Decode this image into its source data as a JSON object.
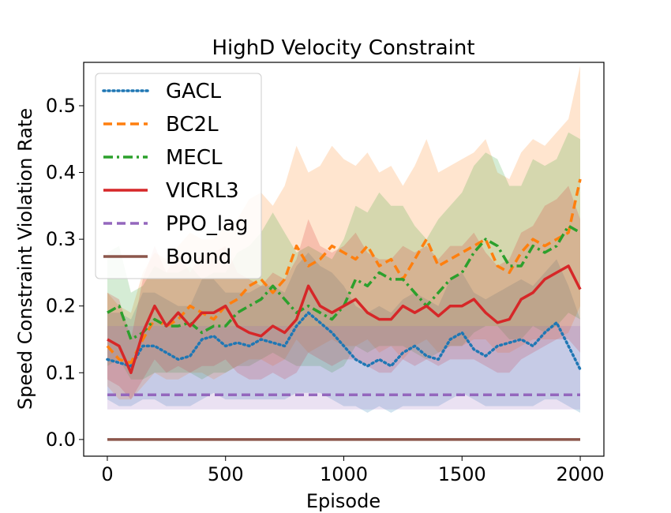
{
  "chart_data": {
    "type": "line",
    "title": "HighD Velocity Constraint",
    "xlabel": "Episode",
    "ylabel": "Speed Constraint Violation Rate",
    "xlim": [
      -100,
      2100
    ],
    "ylim": [
      -0.025,
      0.565
    ],
    "xticks": [
      0,
      500,
      1000,
      1500,
      2000
    ],
    "xtick_labels": [
      "0",
      "500",
      "1000",
      "1500",
      "2000"
    ],
    "yticks": [
      0.0,
      0.1,
      0.2,
      0.3,
      0.4,
      0.5
    ],
    "ytick_labels": [
      "0.0",
      "0.1",
      "0.2",
      "0.3",
      "0.4",
      "0.5"
    ],
    "legend_position": "upper-left",
    "series": [
      {
        "name": "GACL",
        "color": "#1f77b4",
        "style": "dotted",
        "x": [
          0,
          50,
          100,
          150,
          200,
          250,
          300,
          350,
          400,
          450,
          500,
          550,
          600,
          650,
          700,
          750,
          800,
          850,
          900,
          950,
          1000,
          1050,
          1100,
          1150,
          1200,
          1250,
          1300,
          1350,
          1400,
          1450,
          1500,
          1550,
          1600,
          1650,
          1700,
          1750,
          1800,
          1850,
          1900,
          1950,
          2000
        ],
        "y": [
          0.12,
          0.115,
          0.11,
          0.14,
          0.14,
          0.13,
          0.12,
          0.125,
          0.15,
          0.155,
          0.14,
          0.145,
          0.14,
          0.15,
          0.145,
          0.14,
          0.17,
          0.19,
          0.175,
          0.16,
          0.14,
          0.12,
          0.11,
          0.12,
          0.11,
          0.13,
          0.14,
          0.125,
          0.12,
          0.15,
          0.16,
          0.135,
          0.125,
          0.14,
          0.145,
          0.15,
          0.14,
          0.16,
          0.175,
          0.14,
          0.105
        ],
        "band_lower": [
          0.06,
          0.05,
          0.05,
          0.06,
          0.06,
          0.05,
          0.05,
          0.05,
          0.06,
          0.07,
          0.06,
          0.06,
          0.06,
          0.06,
          0.06,
          0.06,
          0.07,
          0.07,
          0.07,
          0.06,
          0.05,
          0.05,
          0.04,
          0.05,
          0.04,
          0.05,
          0.05,
          0.05,
          0.05,
          0.06,
          0.07,
          0.06,
          0.05,
          0.05,
          0.05,
          0.05,
          0.05,
          0.06,
          0.06,
          0.05,
          0.04
        ],
        "band_upper": [
          0.19,
          0.19,
          0.18,
          0.22,
          0.22,
          0.21,
          0.2,
          0.2,
          0.24,
          0.24,
          0.22,
          0.22,
          0.22,
          0.23,
          0.23,
          0.22,
          0.26,
          0.28,
          0.26,
          0.25,
          0.23,
          0.2,
          0.19,
          0.2,
          0.19,
          0.21,
          0.22,
          0.21,
          0.2,
          0.24,
          0.25,
          0.22,
          0.21,
          0.22,
          0.23,
          0.24,
          0.23,
          0.25,
          0.27,
          0.23,
          0.18
        ]
      },
      {
        "name": "BC2L",
        "color": "#ff7f0e",
        "style": "dashed",
        "x": [
          0,
          50,
          100,
          150,
          200,
          250,
          300,
          350,
          400,
          450,
          500,
          550,
          600,
          650,
          700,
          750,
          800,
          850,
          900,
          950,
          1000,
          1050,
          1100,
          1150,
          1200,
          1250,
          1300,
          1350,
          1400,
          1450,
          1500,
          1550,
          1600,
          1650,
          1700,
          1750,
          1800,
          1850,
          1900,
          1950,
          2000
        ],
        "y": [
          0.14,
          0.12,
          0.115,
          0.15,
          0.18,
          0.17,
          0.18,
          0.2,
          0.19,
          0.18,
          0.2,
          0.21,
          0.23,
          0.24,
          0.22,
          0.24,
          0.29,
          0.26,
          0.27,
          0.29,
          0.28,
          0.27,
          0.29,
          0.26,
          0.27,
          0.24,
          0.27,
          0.3,
          0.26,
          0.27,
          0.28,
          0.29,
          0.3,
          0.26,
          0.25,
          0.28,
          0.3,
          0.29,
          0.3,
          0.31,
          0.39
        ],
        "band_lower": [
          0.08,
          0.06,
          0.06,
          0.08,
          0.1,
          0.09,
          0.09,
          0.1,
          0.1,
          0.09,
          0.1,
          0.11,
          0.12,
          0.12,
          0.11,
          0.12,
          0.15,
          0.13,
          0.14,
          0.15,
          0.14,
          0.14,
          0.15,
          0.13,
          0.14,
          0.12,
          0.14,
          0.15,
          0.13,
          0.14,
          0.14,
          0.15,
          0.15,
          0.13,
          0.13,
          0.14,
          0.15,
          0.15,
          0.15,
          0.16,
          0.2
        ],
        "band_upper": [
          0.22,
          0.2,
          0.19,
          0.25,
          0.28,
          0.27,
          0.29,
          0.31,
          0.3,
          0.3,
          0.32,
          0.33,
          0.36,
          0.37,
          0.35,
          0.38,
          0.44,
          0.4,
          0.41,
          0.44,
          0.42,
          0.41,
          0.43,
          0.4,
          0.41,
          0.38,
          0.41,
          0.45,
          0.4,
          0.41,
          0.42,
          0.43,
          0.45,
          0.4,
          0.39,
          0.43,
          0.45,
          0.44,
          0.46,
          0.48,
          0.56
        ]
      },
      {
        "name": "MECL",
        "color": "#2ca02c",
        "style": "dashdot",
        "x": [
          0,
          50,
          100,
          150,
          200,
          250,
          300,
          350,
          400,
          450,
          500,
          550,
          600,
          650,
          700,
          750,
          800,
          850,
          900,
          950,
          1000,
          1050,
          1100,
          1150,
          1200,
          1250,
          1300,
          1350,
          1400,
          1450,
          1500,
          1550,
          1600,
          1650,
          1700,
          1750,
          1800,
          1850,
          1900,
          1950,
          2000
        ],
        "y": [
          0.19,
          0.2,
          0.15,
          0.16,
          0.18,
          0.17,
          0.17,
          0.175,
          0.16,
          0.17,
          0.17,
          0.19,
          0.2,
          0.21,
          0.23,
          0.21,
          0.19,
          0.2,
          0.19,
          0.18,
          0.2,
          0.24,
          0.23,
          0.25,
          0.24,
          0.24,
          0.22,
          0.2,
          0.22,
          0.24,
          0.25,
          0.28,
          0.3,
          0.29,
          0.26,
          0.26,
          0.29,
          0.28,
          0.29,
          0.32,
          0.31
        ],
        "band_lower": [
          0.11,
          0.12,
          0.09,
          0.09,
          0.1,
          0.1,
          0.1,
          0.1,
          0.09,
          0.1,
          0.1,
          0.11,
          0.11,
          0.12,
          0.13,
          0.12,
          0.11,
          0.11,
          0.11,
          0.1,
          0.11,
          0.14,
          0.13,
          0.14,
          0.14,
          0.14,
          0.13,
          0.12,
          0.13,
          0.14,
          0.14,
          0.16,
          0.17,
          0.17,
          0.15,
          0.15,
          0.17,
          0.16,
          0.17,
          0.19,
          0.18
        ],
        "band_upper": [
          0.28,
          0.29,
          0.22,
          0.23,
          0.26,
          0.25,
          0.25,
          0.26,
          0.24,
          0.25,
          0.25,
          0.28,
          0.29,
          0.31,
          0.34,
          0.31,
          0.28,
          0.29,
          0.28,
          0.27,
          0.3,
          0.35,
          0.34,
          0.37,
          0.35,
          0.35,
          0.32,
          0.3,
          0.33,
          0.35,
          0.37,
          0.41,
          0.43,
          0.42,
          0.38,
          0.38,
          0.42,
          0.41,
          0.42,
          0.46,
          0.45
        ]
      },
      {
        "name": "VICRL3",
        "color": "#d62728",
        "style": "solid",
        "x": [
          0,
          50,
          100,
          150,
          200,
          250,
          300,
          350,
          400,
          450,
          500,
          550,
          600,
          650,
          700,
          750,
          800,
          850,
          900,
          950,
          1000,
          1050,
          1100,
          1150,
          1200,
          1250,
          1300,
          1350,
          1400,
          1450,
          1500,
          1550,
          1600,
          1650,
          1700,
          1750,
          1800,
          1850,
          1900,
          1950,
          2000
        ],
        "y": [
          0.15,
          0.14,
          0.1,
          0.16,
          0.2,
          0.17,
          0.19,
          0.17,
          0.19,
          0.19,
          0.2,
          0.17,
          0.16,
          0.155,
          0.17,
          0.16,
          0.18,
          0.23,
          0.2,
          0.19,
          0.2,
          0.21,
          0.19,
          0.18,
          0.18,
          0.2,
          0.19,
          0.2,
          0.185,
          0.2,
          0.2,
          0.21,
          0.19,
          0.175,
          0.18,
          0.21,
          0.22,
          0.24,
          0.25,
          0.26,
          0.225
        ],
        "band_lower": [
          0.09,
          0.08,
          0.06,
          0.09,
          0.12,
          0.1,
          0.11,
          0.1,
          0.11,
          0.11,
          0.12,
          0.1,
          0.09,
          0.09,
          0.1,
          0.09,
          0.1,
          0.13,
          0.12,
          0.11,
          0.12,
          0.12,
          0.11,
          0.1,
          0.1,
          0.12,
          0.11,
          0.12,
          0.11,
          0.12,
          0.12,
          0.12,
          0.11,
          0.1,
          0.1,
          0.12,
          0.13,
          0.14,
          0.15,
          0.15,
          0.13
        ],
        "band_upper": [
          0.22,
          0.21,
          0.15,
          0.24,
          0.29,
          0.25,
          0.28,
          0.25,
          0.28,
          0.28,
          0.29,
          0.25,
          0.24,
          0.23,
          0.25,
          0.24,
          0.27,
          0.33,
          0.29,
          0.28,
          0.29,
          0.31,
          0.28,
          0.27,
          0.27,
          0.29,
          0.28,
          0.29,
          0.27,
          0.29,
          0.29,
          0.31,
          0.28,
          0.26,
          0.27,
          0.31,
          0.32,
          0.35,
          0.36,
          0.38,
          0.33
        ]
      },
      {
        "name": "PPO_lag",
        "color": "#9467bd",
        "style": "dashed",
        "x": [
          0,
          2000
        ],
        "y": [
          0.067,
          0.067
        ],
        "band_lower": [
          0.045,
          0.045
        ],
        "band_upper": [
          0.17,
          0.17
        ]
      },
      {
        "name": "Bound",
        "color": "#8c564b",
        "style": "solid",
        "x": [
          0,
          2000
        ],
        "y": [
          0.0,
          0.0
        ]
      }
    ]
  }
}
